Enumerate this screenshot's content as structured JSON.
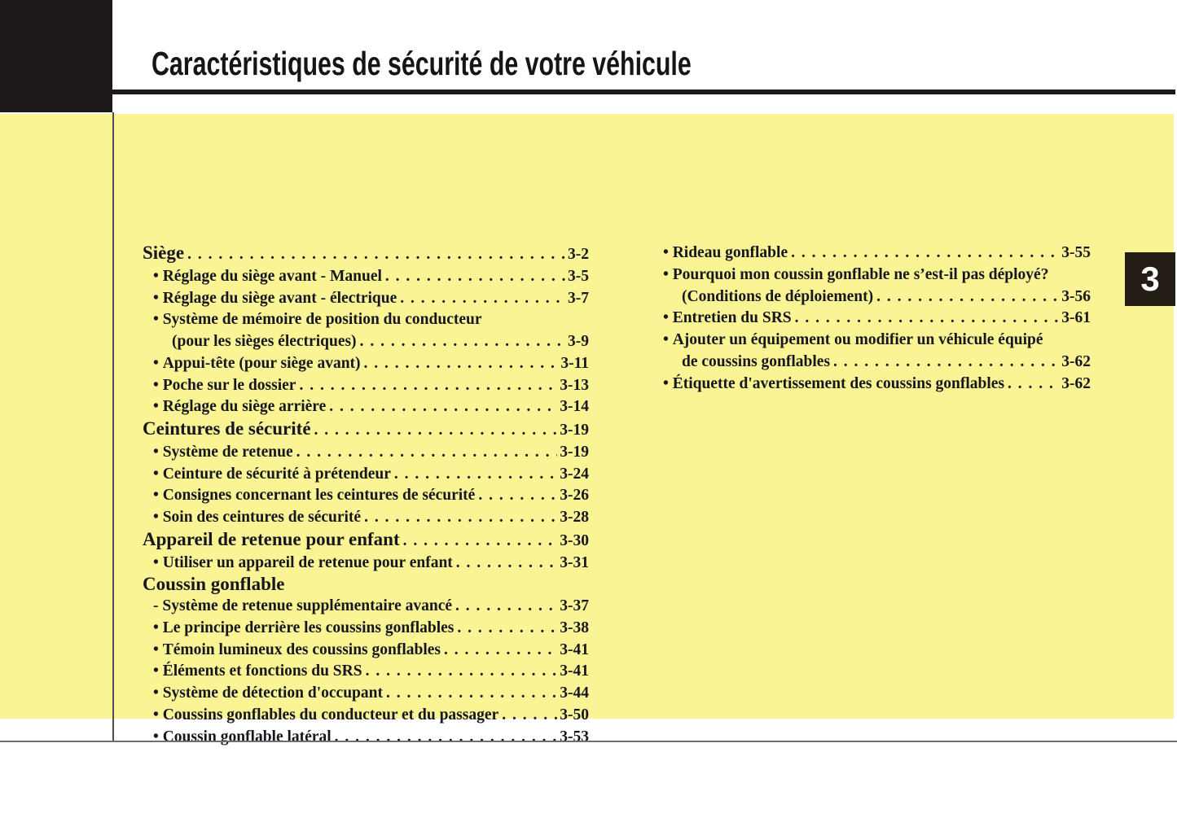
{
  "page": {
    "title": "Caractéristiques de sécurité de votre véhicule",
    "chapter_tab": "3"
  },
  "colors": {
    "highlight_panel": "#faf494",
    "corner_box": "#1d181a",
    "chapter_tab_bg": "#241d15",
    "text": "#16161e"
  },
  "toc": {
    "left_column": [
      {
        "style": "header",
        "text": "Siège",
        "page": "3-2"
      },
      {
        "style": "bullet",
        "text": "Réglage du siège avant - Manuel",
        "page": "3-5"
      },
      {
        "style": "bullet",
        "text": "Réglage du siège avant - électrique",
        "page": "3-7"
      },
      {
        "style": "bullet",
        "text": "Système de mémoire de position du conducteur",
        "page": null
      },
      {
        "style": "cont",
        "text": "(pour les sièges électriques)",
        "page": "3-9"
      },
      {
        "style": "bullet",
        "text": "Appui-tête (pour siège avant)",
        "page": "3-11"
      },
      {
        "style": "bullet",
        "text": "Poche sur le dossier",
        "page": "3-13"
      },
      {
        "style": "bullet",
        "text": "Réglage du siège arrière",
        "page": "3-14"
      },
      {
        "style": "header",
        "text": "Ceintures de sécurité",
        "page": "3-19"
      },
      {
        "style": "bullet",
        "text": "Système de retenue",
        "page": "3-19"
      },
      {
        "style": "bullet",
        "text": "Ceinture de sécurité à prétendeur",
        "page": "3-24"
      },
      {
        "style": "bullet",
        "text": "Consignes concernant les ceintures de sécurité",
        "page": "3-26"
      },
      {
        "style": "bullet",
        "text": "Soin des ceintures de sécurité",
        "page": "3-28"
      },
      {
        "style": "header",
        "text": "Appareil de retenue pour enfant",
        "page": "3-30"
      },
      {
        "style": "bullet",
        "text": "Utiliser un appareil de retenue pour enfant",
        "page": "3-31"
      },
      {
        "style": "header",
        "text": "Coussin gonflable",
        "page": null
      },
      {
        "style": "dash",
        "text": "Système de retenue supplémentaire avancé",
        "page": "3-37"
      },
      {
        "style": "bullet",
        "text": "Le principe derrière les coussins gonflables",
        "page": "3-38"
      },
      {
        "style": "bullet",
        "text": "Témoin lumineux des coussins gonflables",
        "page": "3-41"
      },
      {
        "style": "bullet",
        "text": "Éléments et fonctions du SRS",
        "page": "3-41"
      },
      {
        "style": "bullet",
        "text": "Système de détection d'occupant",
        "page": "3-44"
      },
      {
        "style": "bullet",
        "text": "Coussins gonflables du conducteur et du passager",
        "page": "3-50"
      },
      {
        "style": "bullet",
        "text": "Coussin gonflable latéral",
        "page": "3-53"
      }
    ],
    "right_column": [
      {
        "style": "bullet",
        "text": "Rideau gonflable",
        "page": "3-55"
      },
      {
        "style": "bullet",
        "text": "Pourquoi mon coussin gonflable ne s’est-il pas déployé?",
        "page": null
      },
      {
        "style": "cont",
        "text": "(Conditions de déploiement)",
        "page": "3-56"
      },
      {
        "style": "bullet",
        "text": "Entretien du SRS",
        "page": "3-61"
      },
      {
        "style": "bullet",
        "text": "Ajouter un équipement ou modifier un véhicule équipé",
        "page": null
      },
      {
        "style": "cont",
        "text": "de coussins gonflables",
        "page": "3-62"
      },
      {
        "style": "bullet",
        "text": "Étiquette d'avertissement des coussins gonflables",
        "page": "3-62"
      }
    ]
  }
}
